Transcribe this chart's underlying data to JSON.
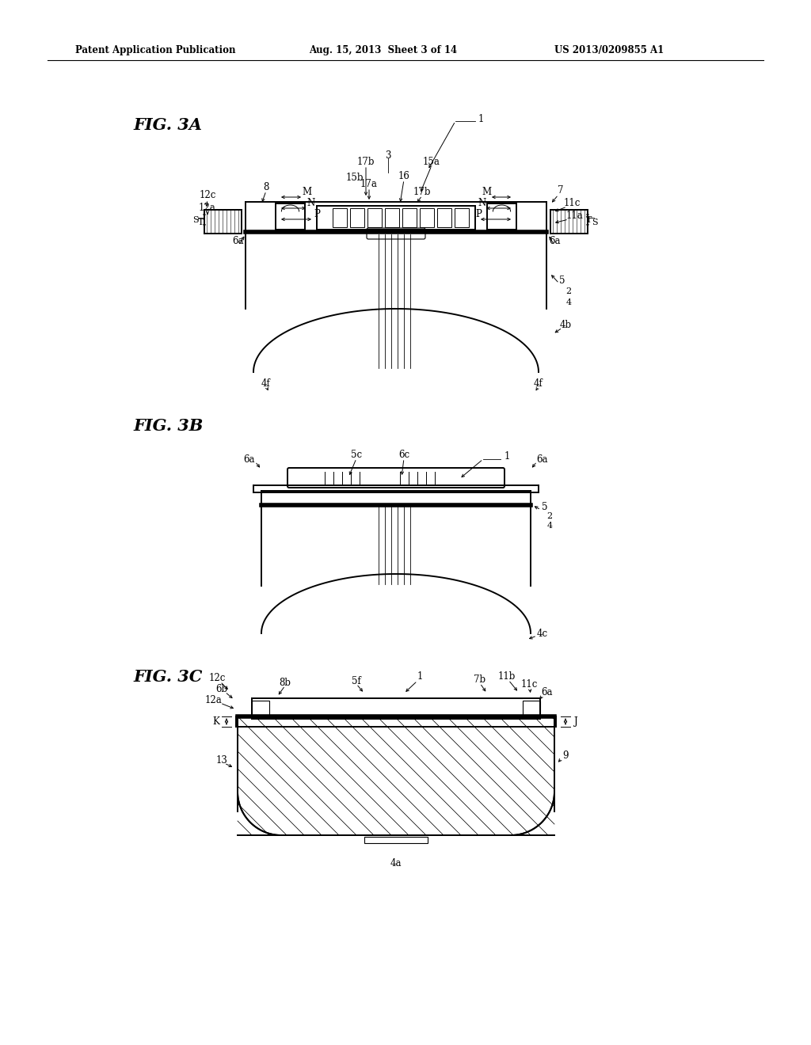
{
  "bg_color": "#ffffff",
  "header_left": "Patent Application Publication",
  "header_mid": "Aug. 15, 2013  Sheet 3 of 14",
  "header_right": "US 2013/0209855 A1"
}
